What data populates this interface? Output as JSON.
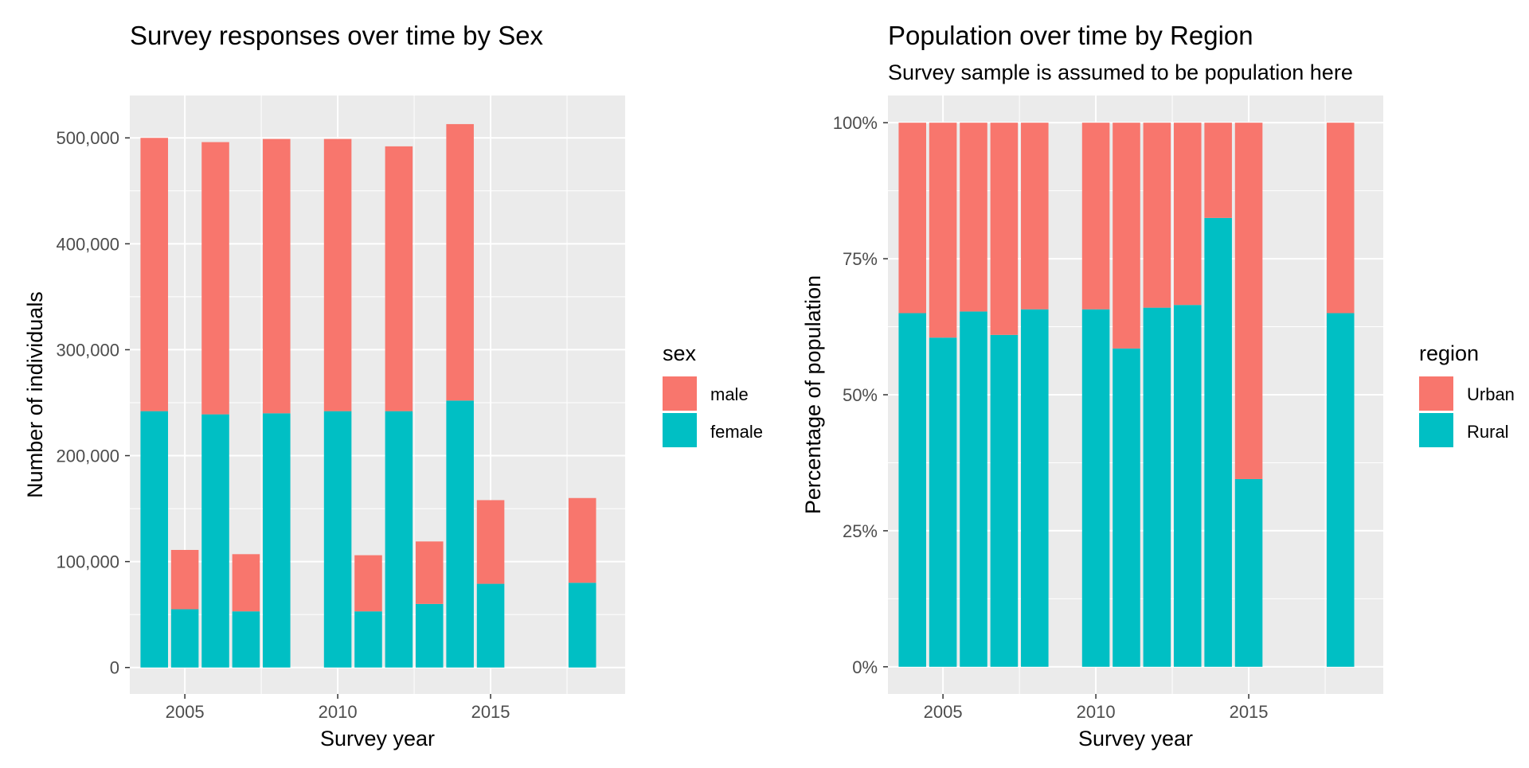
{
  "chart_data": [
    {
      "type": "bar",
      "stacked": true,
      "title": "Survey responses over time by Sex",
      "subtitle": "",
      "xlabel": "Survey year",
      "ylabel": "Number of individuals",
      "x": [
        2004,
        2005,
        2006,
        2007,
        2008,
        2010,
        2011,
        2012,
        2013,
        2014,
        2015,
        2018
      ],
      "xlim": [
        2003.2,
        2019.4
      ],
      "ylim": [
        -25000,
        540000
      ],
      "xticks": [
        2005,
        2010,
        2015
      ],
      "xtick_labels": [
        "2005",
        "2010",
        "2015"
      ],
      "yticks": [
        0,
        100000,
        200000,
        300000,
        400000,
        500000
      ],
      "ytick_labels": [
        "0",
        "100,000",
        "200,000",
        "300,000",
        "400,000",
        "500,000"
      ],
      "legend": {
        "title": "sex",
        "entries": [
          "male",
          "female"
        ],
        "position": "right"
      },
      "series": [
        {
          "name": "female",
          "color": "#00BFC4",
          "values": [
            242000,
            55000,
            239000,
            53000,
            240000,
            242000,
            53000,
            242000,
            60000,
            252000,
            79000,
            80000
          ]
        },
        {
          "name": "male",
          "color": "#F8766D",
          "values": [
            258000,
            56000,
            257000,
            54000,
            259000,
            257000,
            53000,
            250000,
            59000,
            261000,
            79000,
            80000
          ]
        }
      ],
      "grid": true
    },
    {
      "type": "bar",
      "stacked": true,
      "normalized": true,
      "title": "Population over time by Region",
      "subtitle": "Survey sample is assumed to be population here",
      "xlabel": "Survey year",
      "ylabel": "Percentage of population",
      "x": [
        2004,
        2005,
        2006,
        2007,
        2008,
        2010,
        2011,
        2012,
        2013,
        2014,
        2015,
        2018
      ],
      "xlim": [
        2003.2,
        2019.4
      ],
      "ylim": [
        -0.05,
        1.05
      ],
      "xticks": [
        2005,
        2010,
        2015
      ],
      "xtick_labels": [
        "2005",
        "2010",
        "2015"
      ],
      "yticks": [
        0,
        0.25,
        0.5,
        0.75,
        1.0
      ],
      "ytick_labels": [
        "0%",
        "25%",
        "50%",
        "75%",
        "100%"
      ],
      "legend": {
        "title": "region",
        "entries": [
          "Urban",
          "Rural"
        ],
        "position": "right"
      },
      "series": [
        {
          "name": "Rural",
          "color": "#00BFC4",
          "values": [
            0.65,
            0.605,
            0.653,
            0.61,
            0.657,
            0.657,
            0.585,
            0.66,
            0.665,
            0.825,
            0.345,
            0.65
          ]
        },
        {
          "name": "Urban",
          "color": "#F8766D",
          "values": [
            0.35,
            0.395,
            0.347,
            0.39,
            0.343,
            0.343,
            0.415,
            0.34,
            0.335,
            0.175,
            0.655,
            0.35
          ]
        }
      ],
      "grid": true
    }
  ]
}
